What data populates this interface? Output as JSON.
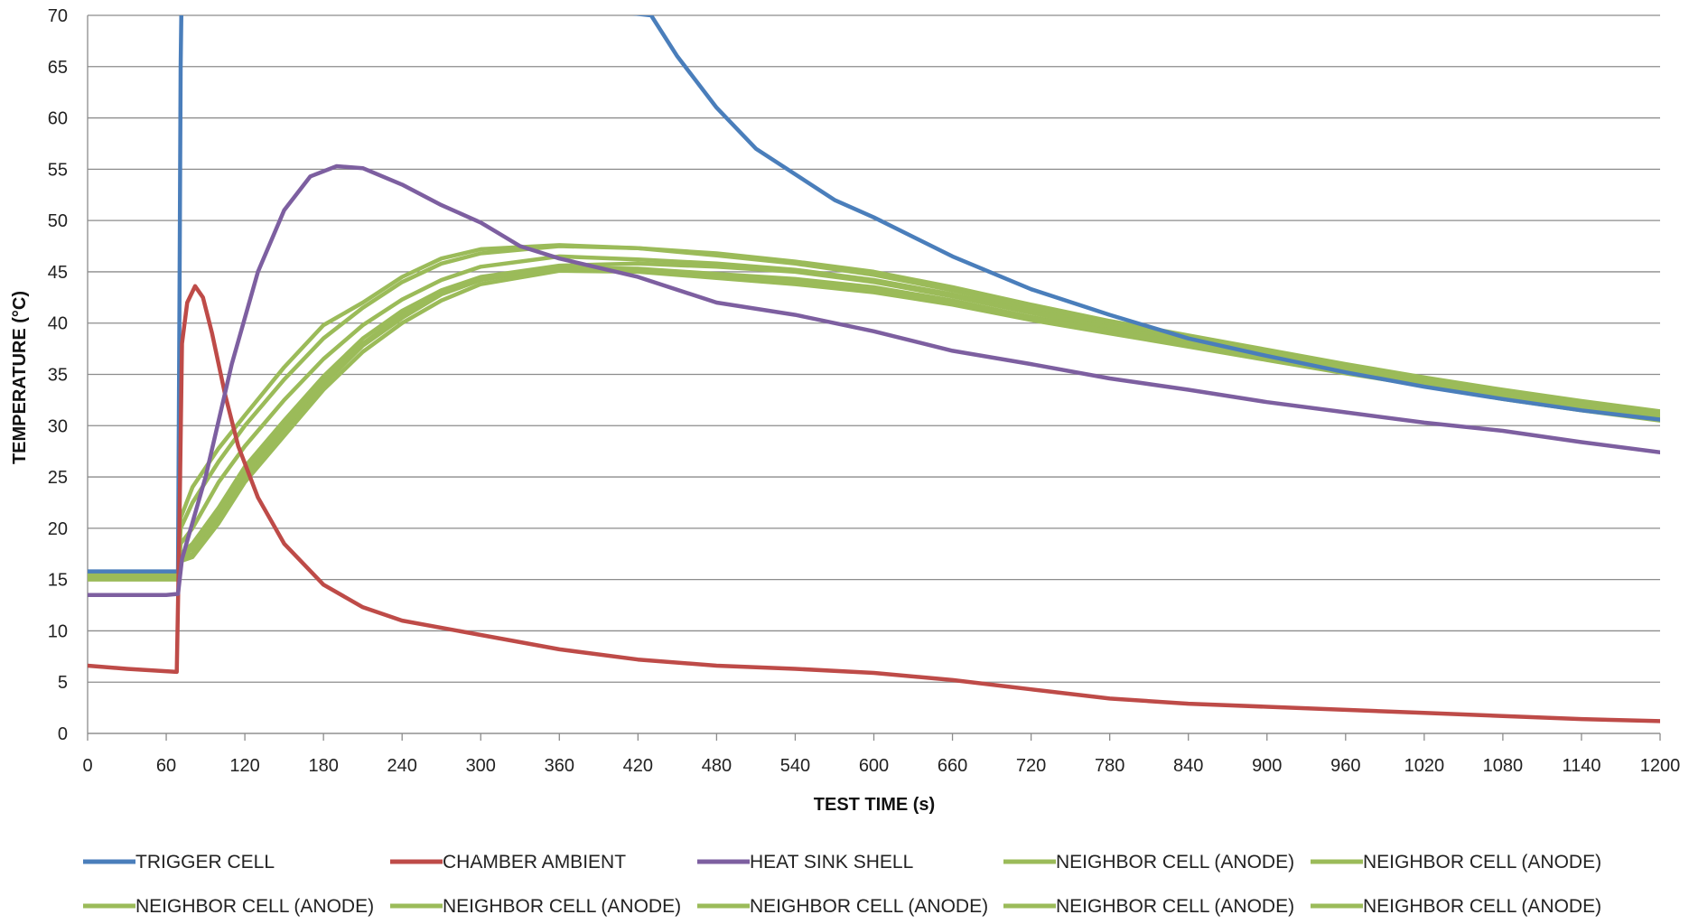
{
  "chart_data": {
    "type": "line",
    "title": "",
    "xlabel": "TEST TIME (s)",
    "ylabel": "TEMPERATURE (°C)",
    "xlim": [
      0,
      1200
    ],
    "ylim": [
      0,
      70
    ],
    "x_ticks": [
      0,
      60,
      120,
      180,
      240,
      300,
      360,
      420,
      480,
      540,
      600,
      660,
      720,
      780,
      840,
      900,
      960,
      1020,
      1080,
      1140,
      1200
    ],
    "y_ticks": [
      0,
      5,
      10,
      15,
      20,
      25,
      30,
      35,
      40,
      45,
      50,
      55,
      60,
      65,
      70
    ],
    "grid": "horizontal",
    "legend_position": "bottom",
    "series": [
      {
        "name": "TRIGGER CELL",
        "color": "#4a7ebb",
        "points": [
          [
            0,
            15.8
          ],
          [
            60,
            15.8
          ],
          [
            69,
            15.8
          ],
          [
            70,
            40
          ],
          [
            71,
            65
          ],
          [
            72,
            75
          ],
          [
            430,
            70
          ],
          [
            450,
            66
          ],
          [
            480,
            61
          ],
          [
            510,
            57
          ],
          [
            540,
            54.5
          ],
          [
            570,
            52
          ],
          [
            600,
            50.3
          ],
          [
            660,
            46.5
          ],
          [
            720,
            43.3
          ],
          [
            780,
            40.8
          ],
          [
            840,
            38.5
          ],
          [
            900,
            36.8
          ],
          [
            960,
            35.2
          ],
          [
            1020,
            33.8
          ],
          [
            1080,
            32.6
          ],
          [
            1140,
            31.5
          ],
          [
            1200,
            30.6
          ]
        ]
      },
      {
        "name": "CHAMBER AMBIENT",
        "color": "#be4b48",
        "points": [
          [
            0,
            6.6
          ],
          [
            30,
            6.3
          ],
          [
            68,
            6
          ],
          [
            70,
            20
          ],
          [
            72,
            38
          ],
          [
            76,
            42
          ],
          [
            82,
            43.6
          ],
          [
            88,
            42.5
          ],
          [
            95,
            39
          ],
          [
            105,
            33
          ],
          [
            115,
            28
          ],
          [
            130,
            23
          ],
          [
            150,
            18.5
          ],
          [
            180,
            14.5
          ],
          [
            210,
            12.3
          ],
          [
            240,
            11
          ],
          [
            300,
            9.6
          ],
          [
            360,
            8.2
          ],
          [
            420,
            7.2
          ],
          [
            480,
            6.6
          ],
          [
            540,
            6.3
          ],
          [
            600,
            5.9
          ],
          [
            660,
            5.2
          ],
          [
            720,
            4.3
          ],
          [
            780,
            3.4
          ],
          [
            840,
            2.9
          ],
          [
            900,
            2.6
          ],
          [
            960,
            2.3
          ],
          [
            1020,
            2
          ],
          [
            1080,
            1.7
          ],
          [
            1140,
            1.4
          ],
          [
            1200,
            1.2
          ]
        ]
      },
      {
        "name": "HEAT SINK SHELL",
        "color": "#7d5fa0",
        "points": [
          [
            0,
            13.5
          ],
          [
            60,
            13.5
          ],
          [
            69,
            13.6
          ],
          [
            72,
            17
          ],
          [
            90,
            25
          ],
          [
            110,
            36
          ],
          [
            130,
            45
          ],
          [
            150,
            51
          ],
          [
            170,
            54.3
          ],
          [
            190,
            55.3
          ],
          [
            210,
            55.1
          ],
          [
            240,
            53.5
          ],
          [
            270,
            51.5
          ],
          [
            300,
            49.8
          ],
          [
            330,
            47.5
          ],
          [
            360,
            46.3
          ],
          [
            420,
            44.5
          ],
          [
            480,
            42
          ],
          [
            540,
            40.8
          ],
          [
            600,
            39.2
          ],
          [
            660,
            37.3
          ],
          [
            720,
            36
          ],
          [
            780,
            34.6
          ],
          [
            840,
            33.5
          ],
          [
            900,
            32.3
          ],
          [
            960,
            31.3
          ],
          [
            1020,
            30.3
          ],
          [
            1080,
            29.5
          ],
          [
            1140,
            28.4
          ],
          [
            1200,
            27.4
          ]
        ]
      },
      {
        "name": "NEIGHBOR CELL (ANODE)",
        "color": "#9bbb59",
        "points": [
          [
            0,
            15.5
          ],
          [
            69,
            15.5
          ],
          [
            71,
            21
          ],
          [
            80,
            24
          ],
          [
            100,
            27.8
          ],
          [
            120,
            31
          ],
          [
            150,
            35.7
          ],
          [
            180,
            39.8
          ],
          [
            210,
            42
          ],
          [
            240,
            44.5
          ],
          [
            270,
            46.3
          ],
          [
            300,
            47.2
          ],
          [
            360,
            47.6
          ],
          [
            420,
            47.3
          ],
          [
            480,
            46.8
          ],
          [
            540,
            46
          ],
          [
            600,
            45
          ],
          [
            660,
            43.5
          ],
          [
            720,
            41.8
          ],
          [
            780,
            40.2
          ],
          [
            840,
            38.8
          ],
          [
            900,
            37.4
          ],
          [
            960,
            36
          ],
          [
            1020,
            34.7
          ],
          [
            1080,
            33.5
          ],
          [
            1140,
            32.4
          ],
          [
            1200,
            31.4
          ]
        ]
      },
      {
        "name": "NEIGHBOR CELL (ANODE)",
        "color": "#9bbb59",
        "points": [
          [
            0,
            15.4
          ],
          [
            69,
            15.4
          ],
          [
            71,
            20
          ],
          [
            80,
            22.5
          ],
          [
            100,
            26.5
          ],
          [
            120,
            30
          ],
          [
            150,
            34.5
          ],
          [
            180,
            38.5
          ],
          [
            210,
            41.5
          ],
          [
            240,
            44
          ],
          [
            270,
            45.8
          ],
          [
            300,
            46.8
          ],
          [
            360,
            47.5
          ],
          [
            420,
            47.3
          ],
          [
            480,
            46.6
          ],
          [
            540,
            45.8
          ],
          [
            600,
            44.7
          ],
          [
            660,
            43.2
          ],
          [
            720,
            41.5
          ],
          [
            780,
            40
          ],
          [
            840,
            38.6
          ],
          [
            900,
            37.2
          ],
          [
            960,
            35.9
          ],
          [
            1020,
            34.6
          ],
          [
            1080,
            33.3
          ],
          [
            1140,
            32.2
          ],
          [
            1200,
            31.2
          ]
        ]
      },
      {
        "name": "NEIGHBOR CELL (ANODE)",
        "color": "#9bbb59",
        "points": [
          [
            0,
            15.3
          ],
          [
            69,
            15.3
          ],
          [
            71,
            18.5
          ],
          [
            80,
            20
          ],
          [
            100,
            24.5
          ],
          [
            120,
            28
          ],
          [
            150,
            32.5
          ],
          [
            180,
            36.5
          ],
          [
            210,
            39.8
          ],
          [
            240,
            42.3
          ],
          [
            270,
            44.2
          ],
          [
            300,
            45.5
          ],
          [
            360,
            46.5
          ],
          [
            420,
            46.2
          ],
          [
            480,
            45.8
          ],
          [
            540,
            45.2
          ],
          [
            600,
            44.2
          ],
          [
            660,
            42.8
          ],
          [
            720,
            41.2
          ],
          [
            780,
            39.8
          ],
          [
            840,
            38.4
          ],
          [
            900,
            37
          ],
          [
            960,
            35.7
          ],
          [
            1020,
            34.4
          ],
          [
            1080,
            33.1
          ],
          [
            1140,
            32
          ],
          [
            1200,
            31
          ]
        ]
      },
      {
        "name": "NEIGHBOR CELL (ANODE)",
        "color": "#9bbb59",
        "points": [
          [
            0,
            15.2
          ],
          [
            69,
            15.2
          ],
          [
            71,
            17.5
          ],
          [
            80,
            18.5
          ],
          [
            100,
            22
          ],
          [
            120,
            26
          ],
          [
            150,
            30.5
          ],
          [
            180,
            34.8
          ],
          [
            210,
            38.5
          ],
          [
            240,
            41.2
          ],
          [
            270,
            43.2
          ],
          [
            300,
            44.5
          ],
          [
            360,
            45.6
          ],
          [
            420,
            45.8
          ],
          [
            480,
            45.5
          ],
          [
            540,
            45
          ],
          [
            600,
            44
          ],
          [
            660,
            42.6
          ],
          [
            720,
            41
          ],
          [
            780,
            39.6
          ],
          [
            840,
            38.2
          ],
          [
            900,
            36.8
          ],
          [
            960,
            35.5
          ],
          [
            1020,
            34.2
          ],
          [
            1080,
            32.9
          ],
          [
            1140,
            31.8
          ],
          [
            1200,
            30.8
          ]
        ]
      },
      {
        "name": "NEIGHBOR CELL (ANODE)",
        "color": "#9bbb59",
        "points": [
          [
            0,
            15.1
          ],
          [
            69,
            15.1
          ],
          [
            71,
            17
          ],
          [
            80,
            17.5
          ],
          [
            100,
            21
          ],
          [
            120,
            25
          ],
          [
            150,
            29.5
          ],
          [
            180,
            34
          ],
          [
            210,
            37.8
          ],
          [
            240,
            40.5
          ],
          [
            270,
            42.8
          ],
          [
            300,
            44.2
          ],
          [
            360,
            45.4
          ],
          [
            420,
            45.3
          ],
          [
            480,
            44.8
          ],
          [
            540,
            44.3
          ],
          [
            600,
            43.5
          ],
          [
            660,
            42.2
          ],
          [
            720,
            40.6
          ],
          [
            780,
            39.3
          ],
          [
            840,
            38
          ],
          [
            900,
            36.6
          ],
          [
            960,
            35.3
          ],
          [
            1020,
            34.1
          ],
          [
            1080,
            32.8
          ],
          [
            1140,
            31.7
          ],
          [
            1200,
            30.7
          ]
        ]
      },
      {
        "name": "NEIGHBOR CELL (ANODE)",
        "color": "#9bbb59",
        "points": [
          [
            0,
            15
          ],
          [
            69,
            15
          ],
          [
            71,
            16.8
          ],
          [
            80,
            17.2
          ],
          [
            100,
            20.5
          ],
          [
            120,
            24.5
          ],
          [
            150,
            29
          ],
          [
            180,
            33.5
          ],
          [
            210,
            37.2
          ],
          [
            240,
            40
          ],
          [
            270,
            42.2
          ],
          [
            300,
            43.8
          ],
          [
            360,
            45.1
          ],
          [
            420,
            45
          ],
          [
            480,
            44.4
          ],
          [
            540,
            43.8
          ],
          [
            600,
            43
          ],
          [
            660,
            41.8
          ],
          [
            720,
            40.3
          ],
          [
            780,
            39
          ],
          [
            840,
            37.7
          ],
          [
            900,
            36.4
          ],
          [
            960,
            35.1
          ],
          [
            1020,
            33.9
          ],
          [
            1080,
            32.6
          ],
          [
            1140,
            31.5
          ],
          [
            1200,
            30.5
          ]
        ]
      },
      {
        "name": "NEIGHBOR CELL (ANODE)",
        "color": "#9bbb59",
        "points": [
          [
            0,
            15.5
          ],
          [
            69,
            15.5
          ],
          [
            71,
            17.2
          ],
          [
            80,
            18
          ],
          [
            100,
            21.5
          ],
          [
            120,
            25.5
          ],
          [
            150,
            30
          ],
          [
            180,
            34.3
          ],
          [
            210,
            38
          ],
          [
            240,
            40.8
          ],
          [
            270,
            43
          ],
          [
            300,
            44.4
          ],
          [
            360,
            45.3
          ],
          [
            420,
            45.2
          ],
          [
            480,
            44.6
          ],
          [
            540,
            44
          ],
          [
            600,
            43.2
          ],
          [
            660,
            42
          ],
          [
            720,
            40.5
          ],
          [
            780,
            39.2
          ],
          [
            840,
            37.9
          ],
          [
            900,
            36.5
          ],
          [
            960,
            35.2
          ],
          [
            1020,
            34
          ],
          [
            1080,
            32.7
          ],
          [
            1140,
            31.6
          ],
          [
            1200,
            30.6
          ]
        ]
      }
    ]
  }
}
